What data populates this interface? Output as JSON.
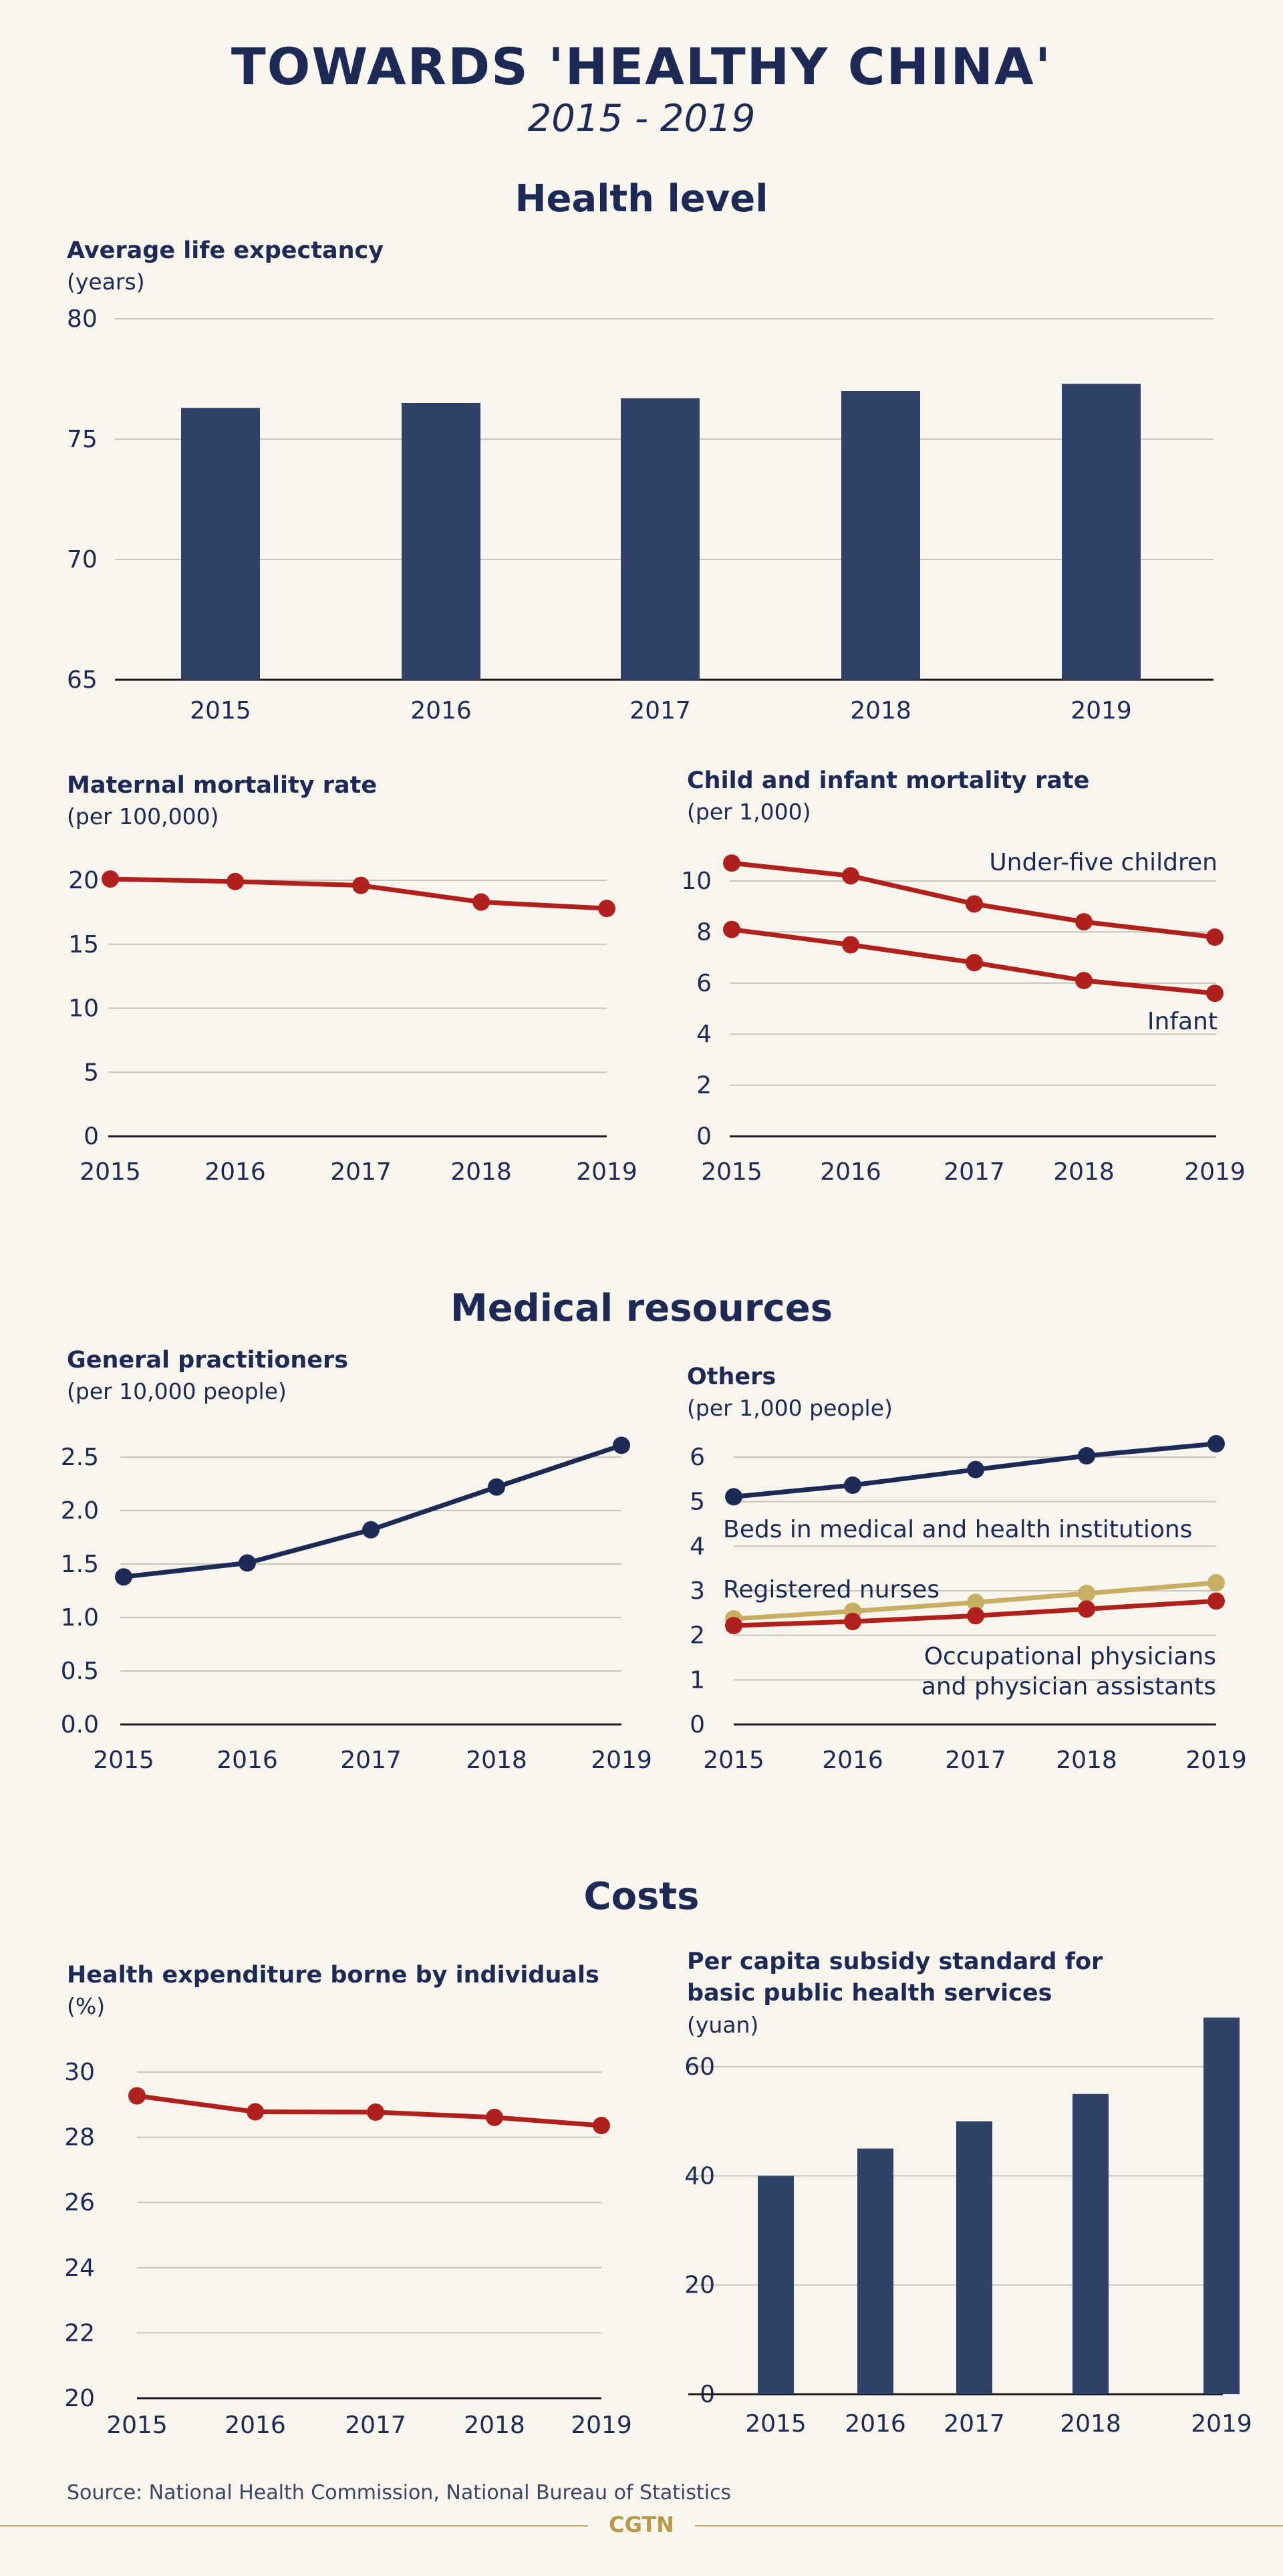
{
  "header": {
    "title": "TOWARDS 'HEALTHY CHINA'",
    "subtitle": "2015 - 2019"
  },
  "sections": {
    "health_level": "Health level",
    "medical_resources": "Medical resources",
    "costs": "Costs"
  },
  "colors": {
    "navy": "#1c2a55",
    "bar": "#314269",
    "red": "#b0201d",
    "gold": "#c8ae63",
    "grid": "#c7c5bd"
  },
  "source": "Source: National Health Commission, National Bureau of Statistics",
  "brand": "CGTN",
  "chart_data": [
    {
      "id": "life",
      "type": "bar",
      "title": "Average life expectancy",
      "unit": "(years)",
      "categories": [
        "2015",
        "2016",
        "2017",
        "2018",
        "2019"
      ],
      "values": [
        76.3,
        76.5,
        76.7,
        77.0,
        77.3
      ],
      "ylim": [
        65,
        80
      ],
      "yticks": [
        65,
        70,
        75,
        80
      ],
      "grid": true
    },
    {
      "id": "maternal",
      "type": "line",
      "title": "Maternal mortality rate",
      "unit": "(per 100,000)",
      "categories": [
        "2015",
        "2016",
        "2017",
        "2018",
        "2019"
      ],
      "series": [
        {
          "color": "#b0201d",
          "values": [
            20.1,
            19.9,
            19.6,
            18.3,
            17.8
          ]
        }
      ],
      "ylim": [
        0,
        20
      ],
      "yticks": [
        0,
        5,
        10,
        15,
        20
      ],
      "grid": true
    },
    {
      "id": "child",
      "type": "line",
      "title": "Child and infant mortality rate",
      "unit": "(per 1,000)",
      "categories": [
        "2015",
        "2016",
        "2017",
        "2018",
        "2019"
      ],
      "series": [
        {
          "name": "Under-five children",
          "color": "#b0201d",
          "values": [
            10.7,
            10.2,
            9.1,
            8.4,
            7.8
          ]
        },
        {
          "name": "Infant",
          "color": "#b0201d",
          "values": [
            8.1,
            7.5,
            6.8,
            6.1,
            5.6
          ]
        }
      ],
      "ylim": [
        0,
        10
      ],
      "yticks": [
        0,
        2,
        4,
        6,
        8,
        10
      ],
      "grid": true
    },
    {
      "id": "gp",
      "type": "line",
      "title": "General practitioners",
      "unit": "(per 10,000 people)",
      "categories": [
        "2015",
        "2016",
        "2017",
        "2018",
        "2019"
      ],
      "series": [
        {
          "color": "#1c2a55",
          "values": [
            1.38,
            1.51,
            1.82,
            2.22,
            2.61
          ]
        }
      ],
      "ylim": [
        0,
        2.5
      ],
      "yticks": [
        "0.0",
        "0.5",
        "1.0",
        "1.5",
        "2.0",
        "2.5"
      ],
      "grid": true
    },
    {
      "id": "others",
      "type": "line",
      "title": "Others",
      "unit": "(per 1,000 people)",
      "categories": [
        "2015",
        "2016",
        "2017",
        "2018",
        "2019"
      ],
      "series": [
        {
          "name": "Beds in medical and health institutions",
          "color": "#1c2a55",
          "values": [
            5.11,
            5.37,
            5.72,
            6.03,
            6.3
          ]
        },
        {
          "name": "Registered nurses",
          "color": "#c8ae63",
          "values": [
            2.37,
            2.54,
            2.74,
            2.94,
            3.18
          ]
        },
        {
          "name": "Occupational physicians and physician assistants",
          "color": "#b0201d",
          "values": [
            2.22,
            2.31,
            2.44,
            2.59,
            2.77
          ]
        }
      ],
      "ylim": [
        0,
        6
      ],
      "yticks": [
        0,
        1,
        2,
        3,
        4,
        5,
        6
      ],
      "grid": true
    },
    {
      "id": "expenditure",
      "type": "line",
      "title": "Health expenditure borne by individuals",
      "unit": "(%)",
      "categories": [
        "2015",
        "2016",
        "2017",
        "2018",
        "2019"
      ],
      "series": [
        {
          "color": "#b0201d",
          "values": [
            29.27,
            28.78,
            28.77,
            28.61,
            28.36
          ]
        }
      ],
      "ylim": [
        20,
        30
      ],
      "yticks": [
        20,
        22,
        24,
        26,
        28,
        30
      ],
      "grid": true
    },
    {
      "id": "subsidy",
      "type": "bar",
      "title": "Per capita subsidy standard for",
      "title2": "basic public health services",
      "unit": "(yuan)",
      "categories": [
        "2015",
        "2016",
        "2017",
        "2018",
        "2019"
      ],
      "values": [
        40,
        45,
        50,
        55,
        69
      ],
      "ylim": [
        0,
        60
      ],
      "yticks": [
        0,
        20,
        40,
        60
      ],
      "grid": true
    }
  ]
}
